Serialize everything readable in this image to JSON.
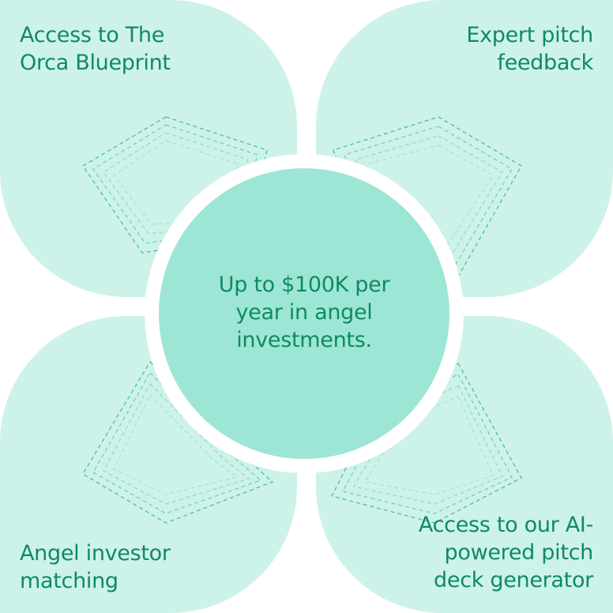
{
  "petals": {
    "top_left": "Access to The\nOrca Blueprint",
    "top_right": "Expert pitch\nfeedback",
    "bottom_left": "Angel investor\nmatching",
    "bottom_right": "Access to our AI-\npowered pitch\ndeck generator"
  },
  "center": {
    "text": "Up to $100K per year in angel investments."
  },
  "colors": {
    "petal_fill": "#cdf2e9",
    "center_fill": "#9de6d5",
    "text": "#0f8a63",
    "pattern_stroke": "#2eb889"
  }
}
